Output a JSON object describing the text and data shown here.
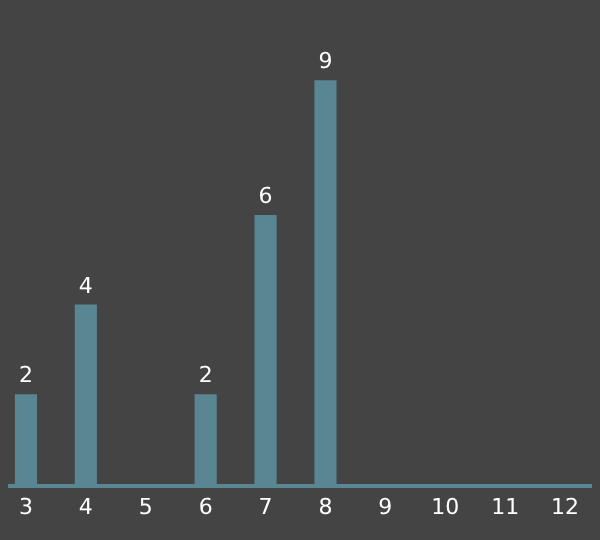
{
  "chart_data": {
    "type": "bar",
    "categories": [
      "3",
      "4",
      "5",
      "6",
      "7",
      "8",
      "9",
      "10",
      "11",
      "12"
    ],
    "values": [
      2,
      4,
      0,
      2,
      6,
      9,
      0,
      0,
      0,
      0
    ],
    "value_labels": [
      "2",
      "4",
      null,
      "2",
      "6",
      "9",
      null,
      null,
      null,
      null
    ],
    "color": "#5a8593",
    "grid": false,
    "legend": false
  }
}
